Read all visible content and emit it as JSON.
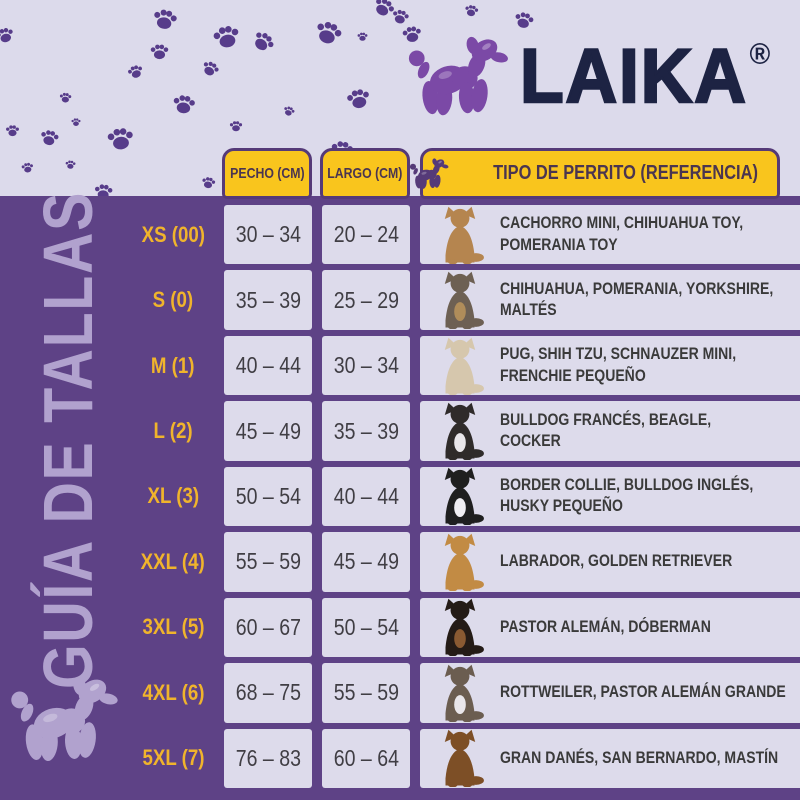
{
  "brand": {
    "name": "LAIKA",
    "registered_mark": "®",
    "logo_icon": "balloon-dog-icon"
  },
  "sidebar": {
    "title": "GUÍA DE TALLAS",
    "icon": "balloon-dog-icon"
  },
  "decor": {
    "paw_icon": "paw-print-icon"
  },
  "table": {
    "headers": {
      "chest": "PECHO (CM)",
      "length": "LARGO (CM)",
      "reference": "TIPO DE PERRITO (REFERENCIA)",
      "reference_icon": "balloon-dog-icon"
    },
    "rows": [
      {
        "size": "XS (00)",
        "chest": "30 – 34",
        "length": "20 – 24",
        "breeds_line1": "CACHORRO MINI, CHIHUAHUA TOY,",
        "breeds_line2": "POMERANIA TOY",
        "dog": "chihuahua",
        "dog_color": "#b5854f",
        "dog_accent": ""
      },
      {
        "size": "S (0)",
        "chest": "35 – 39",
        "length": "25 – 29",
        "breeds_line1": "CHIHUAHUA, POMERANIA, YORKSHIRE,",
        "breeds_line2": "MALTÉS",
        "dog": "yorkshire",
        "dog_color": "#6d6053",
        "dog_accent": "#b08d5a"
      },
      {
        "size": "M (1)",
        "chest": "40 – 44",
        "length": "30 – 34",
        "breeds_line1": "PUG, SHIH TZU, SCHNAUZER MINI,",
        "breeds_line2": "FRENCHIE PEQUEÑO",
        "dog": "shih-tzu",
        "dog_color": "#d6c7ad",
        "dog_accent": ""
      },
      {
        "size": "L (2)",
        "chest": "45 – 49",
        "length": "35 – 39",
        "breeds_line1": "BULLDOG FRANCÉS, BEAGLE,",
        "breeds_line2": "COCKER",
        "dog": "french-bulldog",
        "dog_color": "#2f2b2a",
        "dog_accent": "#e9e6ea"
      },
      {
        "size": "XL (3)",
        "chest": "50 – 54",
        "length": "40 – 44",
        "breeds_line1": "BORDER COLLIE, BULLDOG INGLÉS,",
        "breeds_line2": "HUSKY PEQUEÑO",
        "dog": "border-collie",
        "dog_color": "#1f1f1f",
        "dog_accent": "#f0eef2"
      },
      {
        "size": "XXL (4)",
        "chest": "55 – 59",
        "length": "45 – 49",
        "breeds_line1": "LABRADOR, GOLDEN RETRIEVER",
        "breeds_line2": "",
        "dog": "golden-retriever",
        "dog_color": "#c28b44",
        "dog_accent": ""
      },
      {
        "size": "3XL (5)",
        "chest": "60 – 67",
        "length": "50 – 54",
        "breeds_line1": "PASTOR ALEMÁN, DÓBERMAN",
        "breeds_line2": "",
        "dog": "doberman",
        "dog_color": "#241b16",
        "dog_accent": "#8a5a32"
      },
      {
        "size": "4XL (6)",
        "chest": "68 – 75",
        "length": "55 – 59",
        "breeds_line1": "ROTTWEILER, PASTOR ALEMÁN GRANDE",
        "breeds_line2": "",
        "dog": "pitbull",
        "dog_color": "#6b5d50",
        "dog_accent": "#e9e6ea"
      },
      {
        "size": "5XL (7)",
        "chest": "76 – 83",
        "length": "60 – 64",
        "breeds_line1": "GRAN DANÉS, SAN BERNARDO, MASTÍN",
        "breeds_line2": "",
        "dog": "mastiff",
        "dog_color": "#7d4f26",
        "dog_accent": ""
      }
    ]
  },
  "colors": {
    "background": "#dcdaeb",
    "panel_purple": "#5e4286",
    "paw_purple": "#573c8a",
    "accent_yellow": "#f9c51d",
    "label_yellow": "#f0b42c",
    "logo_navy": "#1d2343",
    "logo_purple": "#7b49a6",
    "sidebar_text": "#b1a2ce",
    "cell_bg": "#dddbeb",
    "cell_text": "#403e44",
    "pill_text": "#4a3550"
  }
}
